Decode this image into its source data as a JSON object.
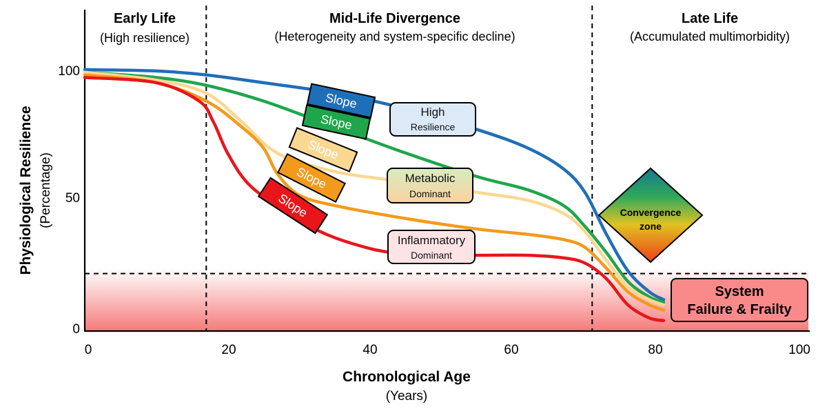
{
  "chart_data": {
    "type": "line",
    "xlabel": "Chronological Age",
    "xlabel_sub": "(Years)",
    "ylabel": "Physiological Resilience",
    "ylabel_sub": "(Percentage)",
    "xlim": [
      0,
      100
    ],
    "ylim": [
      0,
      100
    ],
    "x_ticks": [
      "0",
      "20",
      "40",
      "60",
      "80",
      "100"
    ],
    "y_ticks": [
      "0",
      "50",
      "100"
    ],
    "grid": false,
    "phases": [
      {
        "title": "Early Life",
        "subtitle": "(High resilience)"
      },
      {
        "title": "Mid-Life Divergence",
        "subtitle": "(Heterogeneity and system-specific decline)"
      },
      {
        "title": "Late Life",
        "subtitle": "(Accumulated multimorbidity)"
      }
    ],
    "phase_boundaries": [
      17,
      71
    ],
    "threshold": 22,
    "series": [
      {
        "color": "#1f6fb8",
        "x": [
          0,
          10,
          17,
          25,
          35,
          45,
          55,
          62,
          67,
          70,
          73,
          76,
          79,
          81
        ],
        "y": [
          100,
          99.5,
          98,
          95,
          91,
          85,
          77,
          70,
          62,
          53,
          37,
          23,
          15,
          12
        ]
      },
      {
        "color": "#1fa64b",
        "x": [
          0,
          10,
          17,
          25,
          35,
          45,
          55,
          62,
          67,
          70,
          73,
          76,
          79,
          81
        ],
        "y": [
          99,
          97,
          94,
          88,
          78,
          68,
          59,
          54,
          48,
          40,
          30,
          19,
          13,
          11
        ]
      },
      {
        "color": "#fad892",
        "x": [
          0,
          10,
          17,
          22,
          27,
          35,
          45,
          55,
          62,
          67,
          70,
          73,
          76,
          79,
          81
        ],
        "y": [
          99,
          96,
          91,
          80,
          68,
          61,
          57,
          53,
          50,
          45,
          38,
          27,
          17,
          12,
          10
        ]
      },
      {
        "color": "#f39a1c",
        "x": [
          0,
          10,
          17,
          22,
          25,
          27,
          30,
          35,
          45,
          55,
          62,
          67,
          70,
          73,
          76,
          79,
          81
        ],
        "y": [
          98,
          95,
          88,
          78,
          70,
          60,
          52,
          48,
          43,
          39,
          37,
          35,
          32,
          24,
          15,
          10,
          8
        ]
      },
      {
        "color": "#e8161b",
        "x": [
          0,
          10,
          16,
          18,
          20,
          23,
          28,
          33,
          38,
          43,
          50,
          55,
          62,
          67,
          70,
          73,
          76,
          79,
          81
        ],
        "y": [
          97,
          95,
          88,
          80,
          68,
          56,
          46,
          38,
          33,
          30,
          29,
          29,
          29,
          28,
          26,
          20,
          10,
          5,
          4
        ]
      }
    ],
    "slope_labels": [
      "Slope",
      "Slope",
      "Slope",
      "Slope",
      "Slope"
    ],
    "slope_colors": [
      "#1f6fb8",
      "#1fa64b",
      "#fad892",
      "#f39a1c",
      "#e8161b"
    ],
    "annotations": {
      "high": {
        "title": "High",
        "subtitle": "Resilience",
        "fill": "#dce9f6"
      },
      "metabolic": {
        "title": "Metabolic",
        "subtitle": "Dominant"
      },
      "inflammatory": {
        "title": "Inflammatory",
        "subtitle": "Dominant",
        "fill": "#fde3e3"
      },
      "convergence": {
        "line1": "Convergence",
        "line2": "zone"
      },
      "failure": {
        "line1": "System",
        "line2": "Failure & Frailty",
        "fill": "#fa8a8a"
      }
    }
  }
}
